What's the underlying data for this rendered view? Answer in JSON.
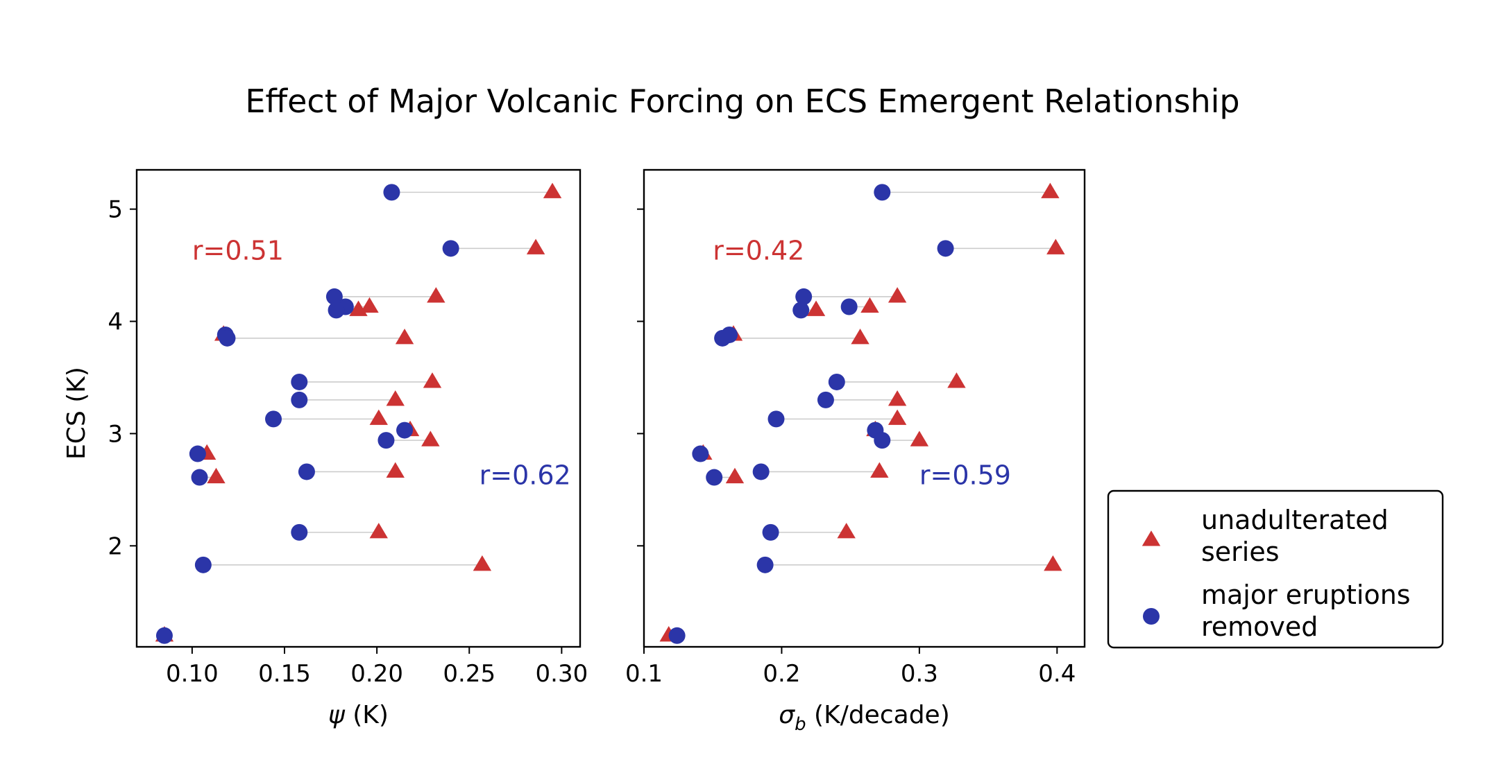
{
  "figure": {
    "title": "Effect of Major Volcanic Forcing on ECS Emergent Relationship",
    "ylabel": "ECS (K)"
  },
  "colors": {
    "unadulterated": "#cc3333",
    "removed": "#2b35a8",
    "connector": "#cccccc"
  },
  "legend": {
    "placement": "right, outside plots",
    "entries": [
      {
        "marker": "triangle",
        "lines": [
          "unadulterated",
          "series"
        ]
      },
      {
        "marker": "circle",
        "lines": [
          "major eruptions",
          "removed"
        ]
      }
    ]
  },
  "chart_data": [
    {
      "type": "scatter",
      "panel": "left",
      "xlabel_symbol": "ψ",
      "xlabel_sub": "",
      "xlabel_unit": "(K)",
      "xlim": [
        0.07,
        0.31
      ],
      "xticks": [
        0.1,
        0.15,
        0.2,
        0.25,
        0.3
      ],
      "xtick_labels": [
        "0.10",
        "0.15",
        "0.20",
        "0.25",
        "0.30"
      ],
      "ylim": [
        1.1,
        5.35
      ],
      "yticks": [
        2,
        3,
        4,
        5
      ],
      "ytick_labels": [
        "2",
        "3",
        "4",
        "5"
      ],
      "annotations": [
        {
          "text": "r=0.51",
          "series": "unadulterated",
          "x": 0.1,
          "y": 4.55,
          "anchor": "start"
        },
        {
          "text": "r=0.62",
          "series": "removed",
          "x": 0.305,
          "y": 2.55,
          "anchor": "end"
        }
      ],
      "pairs": [
        {
          "ecs": 5.15,
          "unadulterated": 0.295,
          "removed": 0.208
        },
        {
          "ecs": 4.65,
          "unadulterated": 0.286,
          "removed": 0.24
        },
        {
          "ecs": 4.22,
          "unadulterated": 0.232,
          "removed": 0.177
        },
        {
          "ecs": 4.13,
          "unadulterated": 0.196,
          "removed": 0.183
        },
        {
          "ecs": 4.1,
          "unadulterated": 0.19,
          "removed": 0.178
        },
        {
          "ecs": 3.88,
          "unadulterated": 0.117,
          "removed": 0.118
        },
        {
          "ecs": 3.85,
          "unadulterated": 0.215,
          "removed": 0.119
        },
        {
          "ecs": 3.46,
          "unadulterated": 0.23,
          "removed": 0.158
        },
        {
          "ecs": 3.3,
          "unadulterated": 0.21,
          "removed": 0.158
        },
        {
          "ecs": 3.13,
          "unadulterated": 0.201,
          "removed": 0.144
        },
        {
          "ecs": 3.03,
          "unadulterated": 0.218,
          "removed": 0.215
        },
        {
          "ecs": 2.94,
          "unadulterated": 0.229,
          "removed": 0.205
        },
        {
          "ecs": 2.82,
          "unadulterated": 0.108,
          "removed": 0.103
        },
        {
          "ecs": 2.66,
          "unadulterated": 0.21,
          "removed": 0.162
        },
        {
          "ecs": 2.61,
          "unadulterated": 0.113,
          "removed": 0.104
        },
        {
          "ecs": 2.12,
          "unadulterated": 0.201,
          "removed": 0.158
        },
        {
          "ecs": 1.83,
          "unadulterated": 0.257,
          "removed": 0.106
        },
        {
          "ecs": 1.2,
          "unadulterated": 0.085,
          "removed": 0.085
        }
      ]
    },
    {
      "type": "scatter",
      "panel": "right",
      "xlabel_symbol": "σ",
      "xlabel_sub": "b",
      "xlabel_unit": "(K/decade)",
      "xlim": [
        0.1,
        0.42
      ],
      "xticks": [
        0.1,
        0.2,
        0.3,
        0.4
      ],
      "xtick_labels": [
        "0.1",
        "0.2",
        "0.3",
        "0.4"
      ],
      "ylim": [
        1.1,
        5.35
      ],
      "yticks": [
        2,
        3,
        4,
        5
      ],
      "ytick_labels": [],
      "annotations": [
        {
          "text": "r=0.42",
          "series": "unadulterated",
          "x": 0.15,
          "y": 4.55,
          "anchor": "start"
        },
        {
          "text": "r=0.59",
          "series": "removed",
          "x": 0.3,
          "y": 2.55,
          "anchor": "start"
        }
      ],
      "pairs": [
        {
          "ecs": 5.15,
          "unadulterated": 0.395,
          "removed": 0.273
        },
        {
          "ecs": 4.65,
          "unadulterated": 0.399,
          "removed": 0.319
        },
        {
          "ecs": 4.22,
          "unadulterated": 0.284,
          "removed": 0.216
        },
        {
          "ecs": 4.13,
          "unadulterated": 0.264,
          "removed": 0.249
        },
        {
          "ecs": 4.1,
          "unadulterated": 0.225,
          "removed": 0.214
        },
        {
          "ecs": 3.88,
          "unadulterated": 0.165,
          "removed": 0.162
        },
        {
          "ecs": 3.85,
          "unadulterated": 0.257,
          "removed": 0.157
        },
        {
          "ecs": 3.46,
          "unadulterated": 0.327,
          "removed": 0.24
        },
        {
          "ecs": 3.3,
          "unadulterated": 0.284,
          "removed": 0.232
        },
        {
          "ecs": 3.13,
          "unadulterated": 0.284,
          "removed": 0.196
        },
        {
          "ecs": 3.03,
          "unadulterated": 0.268,
          "removed": 0.268
        },
        {
          "ecs": 2.94,
          "unadulterated": 0.3,
          "removed": 0.273
        },
        {
          "ecs": 2.82,
          "unadulterated": 0.143,
          "removed": 0.141
        },
        {
          "ecs": 2.66,
          "unadulterated": 0.271,
          "removed": 0.185
        },
        {
          "ecs": 2.61,
          "unadulterated": 0.166,
          "removed": 0.151
        },
        {
          "ecs": 2.12,
          "unadulterated": 0.247,
          "removed": 0.192
        },
        {
          "ecs": 1.83,
          "unadulterated": 0.397,
          "removed": 0.188
        },
        {
          "ecs": 1.2,
          "unadulterated": 0.118,
          "removed": 0.124
        }
      ]
    }
  ]
}
